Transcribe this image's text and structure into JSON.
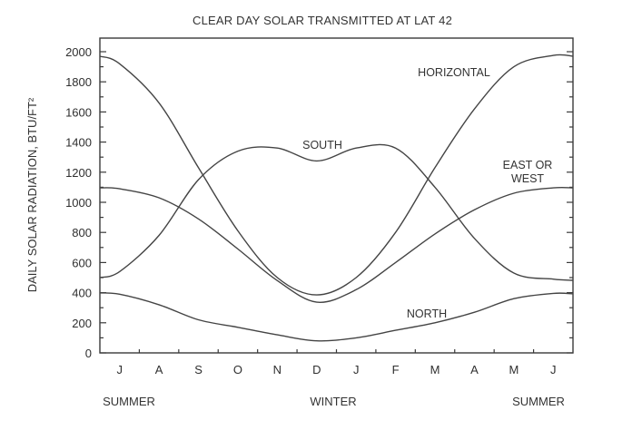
{
  "chart_data": {
    "type": "line",
    "title": "CLEAR DAY SOLAR TRANSMITTED AT LAT 42",
    "xlabel": "",
    "ylabel": "DAILY SOLAR RADIATION, BTU/FT²",
    "ylim": [
      0,
      2000
    ],
    "yticks": [
      0,
      200,
      400,
      600,
      800,
      1000,
      1200,
      1400,
      1600,
      1800,
      2000
    ],
    "grid": false,
    "legend": "inline labels",
    "categories": [
      "J",
      "A",
      "S",
      "O",
      "N",
      "D",
      "J",
      "F",
      "M",
      "A",
      "M",
      "J"
    ],
    "season_labels": [
      "SUMMER",
      "WINTER",
      "SUMMER"
    ],
    "x": [
      0,
      0.5,
      1.5,
      2.5,
      3.5,
      4.5,
      5.5,
      6.5,
      7.5,
      8.5,
      9.5,
      10.5,
      11.5,
      12
    ],
    "series": [
      {
        "name": "HORIZONTAL",
        "values": [
          1970,
          1920,
          1660,
          1230,
          810,
          500,
          385,
          500,
          800,
          1230,
          1620,
          1900,
          1975,
          1970
        ]
      },
      {
        "name": "SOUTH",
        "values": [
          500,
          540,
          780,
          1150,
          1340,
          1360,
          1275,
          1360,
          1360,
          1100,
          760,
          530,
          490,
          482
        ]
      },
      {
        "name": "EAST OR WEST",
        "values": [
          1096,
          1090,
          1030,
          890,
          690,
          480,
          337,
          420,
          600,
          790,
          950,
          1060,
          1096,
          1096
        ]
      },
      {
        "name": "NORTH",
        "values": [
          398,
          390,
          320,
          220,
          170,
          120,
          80,
          100,
          150,
          200,
          270,
          360,
          395,
          392
        ]
      }
    ],
    "label_positions": {
      "HORIZONTAL": [
        500,
        84
      ],
      "SOUTH": [
        355,
        164
      ],
      "EAST OR WEST": [
        581,
        186
      ],
      "NORTH": [
        470,
        350
      ]
    }
  }
}
